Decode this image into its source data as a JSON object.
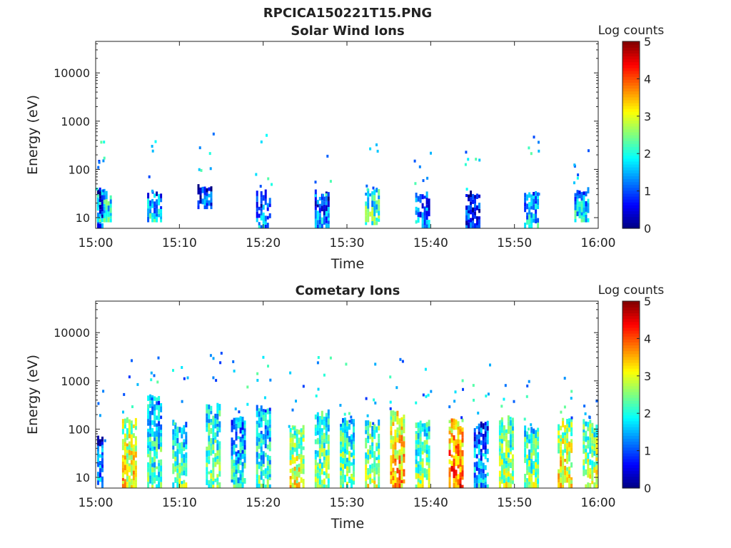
{
  "figure_title": "RPCICA150221T15.PNG",
  "chart_data": [
    {
      "type": "heatmap",
      "title": "Solar Wind Ions",
      "xlabel": "Time",
      "ylabel": "Energy (eV)",
      "y_scale": "log",
      "ylim": [
        6,
        45000
      ],
      "x_range": [
        "15:00",
        "16:00"
      ],
      "x_ticks": [
        "15:00",
        "15:10",
        "15:20",
        "15:30",
        "15:40",
        "15:50",
        "16:00"
      ],
      "y_ticks": [
        "10",
        "100",
        "1000",
        "10000"
      ],
      "colorbar": {
        "label": "Log counts",
        "range": [
          0,
          5
        ],
        "ticks": [
          "0",
          "1",
          "2",
          "3",
          "4",
          "5"
        ],
        "colormap": "jet"
      },
      "grid": false,
      "bursts": [
        {
          "t": "15:00",
          "e_low": 6,
          "e_high": 30,
          "level": 1.1
        },
        {
          "t": "15:01",
          "e_low": 8,
          "e_high": 35,
          "level": 2.2
        },
        {
          "t": "15:07",
          "e_low": 8,
          "e_high": 28,
          "level": 1.8
        },
        {
          "t": "15:13",
          "e_low": 15,
          "e_high": 40,
          "level": 1.2
        },
        {
          "t": "15:20",
          "e_low": 6,
          "e_high": 30,
          "level": 1.3
        },
        {
          "t": "15:27",
          "e_low": 6,
          "e_high": 30,
          "level": 1.4
        },
        {
          "t": "15:33",
          "e_low": 7,
          "e_high": 35,
          "level": 2.4
        },
        {
          "t": "15:39",
          "e_low": 6,
          "e_high": 28,
          "level": 1.5
        },
        {
          "t": "15:45",
          "e_low": 6,
          "e_high": 28,
          "level": 1.0
        },
        {
          "t": "15:52",
          "e_low": 6,
          "e_high": 30,
          "level": 1.8
        },
        {
          "t": "15:58",
          "e_low": 8,
          "e_high": 32,
          "level": 2.0
        }
      ]
    },
    {
      "type": "heatmap",
      "title": "Cometary Ions",
      "xlabel": "Time",
      "ylabel": "Energy (eV)",
      "y_scale": "log",
      "ylim": [
        6,
        45000
      ],
      "x_range": [
        "15:00",
        "16:00"
      ],
      "x_ticks": [
        "15:00",
        "15:10",
        "15:20",
        "15:30",
        "15:40",
        "15:50",
        "16:00"
      ],
      "y_ticks": [
        "10",
        "100",
        "1000",
        "10000"
      ],
      "colorbar": {
        "label": "Log counts",
        "range": [
          0,
          5
        ],
        "ticks": [
          "0",
          "1",
          "2",
          "3",
          "4",
          "5"
        ],
        "colormap": "jet"
      },
      "grid": false,
      "bursts": [
        {
          "t": "15:00",
          "e_low": 6,
          "e_high": 60,
          "level": 1.6
        },
        {
          "t": "15:04",
          "e_low": 6,
          "e_high": 150,
          "level": 3.3
        },
        {
          "t": "15:07",
          "e_low": 6,
          "e_high": 400,
          "level": 2.2
        },
        {
          "t": "15:10",
          "e_low": 6,
          "e_high": 120,
          "level": 2.4
        },
        {
          "t": "15:14",
          "e_low": 6,
          "e_high": 300,
          "level": 2.5
        },
        {
          "t": "15:17",
          "e_low": 6,
          "e_high": 150,
          "level": 2.0
        },
        {
          "t": "15:20",
          "e_low": 6,
          "e_high": 250,
          "level": 2.2
        },
        {
          "t": "15:24",
          "e_low": 6,
          "e_high": 100,
          "level": 3.0
        },
        {
          "t": "15:27",
          "e_low": 6,
          "e_high": 200,
          "level": 2.6
        },
        {
          "t": "15:30",
          "e_low": 6,
          "e_high": 150,
          "level": 2.6
        },
        {
          "t": "15:33",
          "e_low": 6,
          "e_high": 120,
          "level": 2.8
        },
        {
          "t": "15:36",
          "e_low": 6,
          "e_high": 200,
          "level": 3.6
        },
        {
          "t": "15:39",
          "e_low": 6,
          "e_high": 130,
          "level": 2.6
        },
        {
          "t": "15:43",
          "e_low": 6,
          "e_high": 150,
          "level": 4.0
        },
        {
          "t": "15:46",
          "e_low": 6,
          "e_high": 120,
          "level": 1.6
        },
        {
          "t": "15:49",
          "e_low": 6,
          "e_high": 150,
          "level": 2.7
        },
        {
          "t": "15:52",
          "e_low": 6,
          "e_high": 100,
          "level": 2.6
        },
        {
          "t": "15:56",
          "e_low": 6,
          "e_high": 160,
          "level": 3.2
        },
        {
          "t": "15:59",
          "e_low": 6,
          "e_high": 130,
          "level": 2.9
        }
      ]
    }
  ]
}
